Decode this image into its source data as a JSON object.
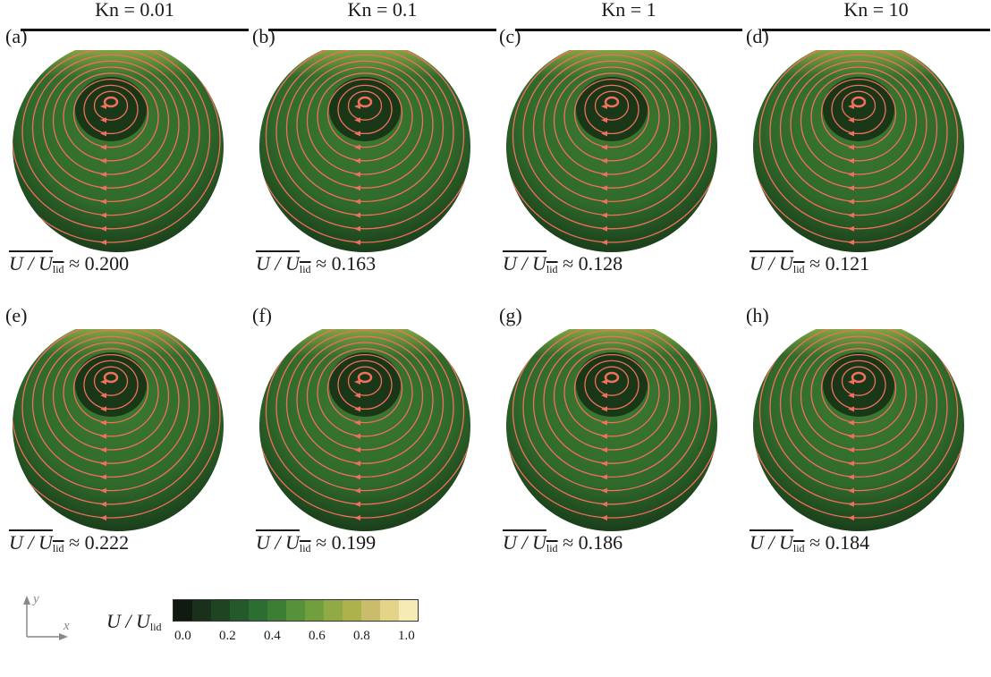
{
  "column_headers": [
    "Kn = 0.01",
    "Kn = 0.1",
    "Kn = 1",
    "Kn = 10"
  ],
  "panels": [
    {
      "label": "(a)",
      "mean_value": "0.200"
    },
    {
      "label": "(b)",
      "mean_value": "0.163"
    },
    {
      "label": "(c)",
      "mean_value": "0.128"
    },
    {
      "label": "(d)",
      "mean_value": "0.121"
    },
    {
      "label": "(e)",
      "mean_value": "0.222"
    },
    {
      "label": "(f)",
      "mean_value": "0.199"
    },
    {
      "label": "(g)",
      "mean_value": "0.186"
    },
    {
      "label": "(h)",
      "mean_value": "0.184"
    }
  ],
  "mean_expression": {
    "numerator": "U / U",
    "subscript": "lid",
    "approx": "≈"
  },
  "legend": {
    "title": "U / U",
    "subscript": "lid",
    "tick_labels": [
      "0.0",
      "0.2",
      "0.4",
      "0.6",
      "0.8",
      "1.0"
    ],
    "colors": [
      "#111a10",
      "#19301a",
      "#1f4422",
      "#245a2b",
      "#2c6d31",
      "#3c7f34",
      "#56923a",
      "#729f3e",
      "#90aa45",
      "#aeb24c",
      "#c9bc6a",
      "#e3d48a",
      "#f6ebb5"
    ]
  },
  "axis_labels": {
    "x": "x",
    "y": "y"
  },
  "colors": {
    "streamline": "#f26e5e",
    "field_dark": "#163517",
    "field_mid": "#3d7a31",
    "field_light": "#8fae45"
  }
}
